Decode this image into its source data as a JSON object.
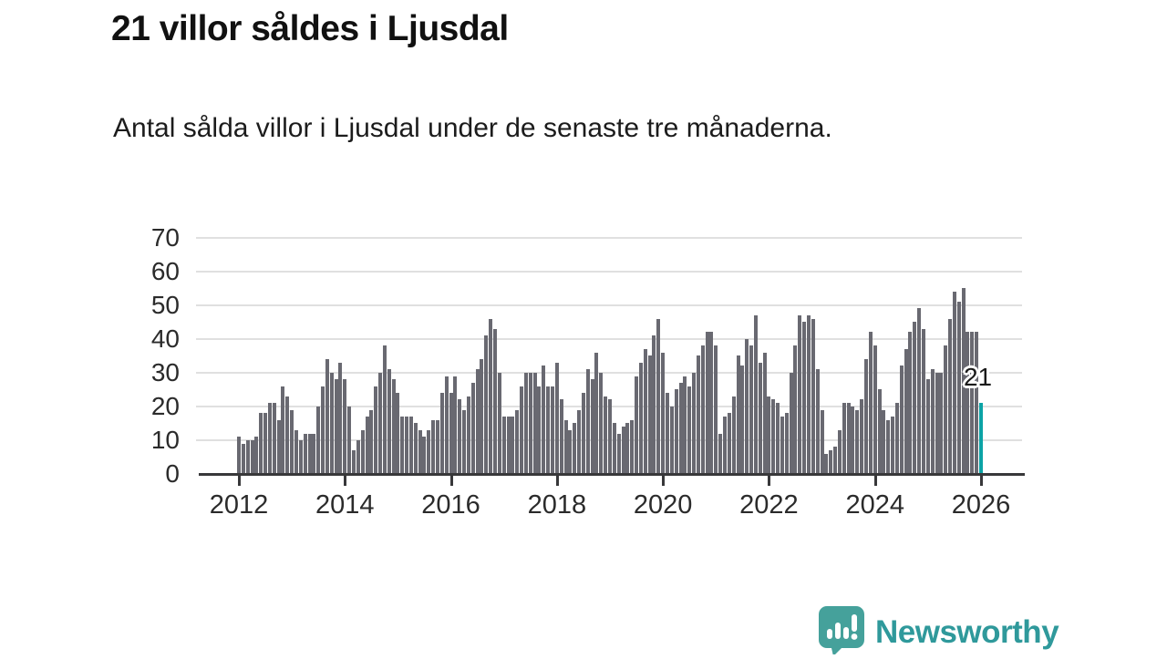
{
  "header": {
    "title": "21 villor såldes i Ljusdal",
    "subtitle": "Antal sålda villor i Ljusdal under de senaste tre månaderna."
  },
  "chart_data": {
    "type": "bar",
    "title": "21 villor såldes i Ljusdal",
    "x_start_year": 2012,
    "points_per_year": 12,
    "x_ticks": [
      2012,
      2014,
      2016,
      2018,
      2020,
      2022,
      2024,
      2026
    ],
    "y_ticks": [
      0,
      10,
      20,
      30,
      40,
      50,
      60,
      70
    ],
    "ylim": [
      0,
      70
    ],
    "grid": true,
    "values": [
      11,
      9,
      10,
      10,
      11,
      18,
      18,
      21,
      21,
      16,
      26,
      23,
      19,
      13,
      10,
      12,
      12,
      12,
      20,
      26,
      34,
      30,
      28,
      33,
      28,
      20,
      7,
      10,
      13,
      17,
      19,
      26,
      30,
      38,
      31,
      28,
      24,
      17,
      17,
      17,
      15,
      13,
      11,
      13,
      16,
      16,
      24,
      29,
      24,
      29,
      22,
      19,
      23,
      27,
      31,
      34,
      41,
      46,
      43,
      30,
      17,
      17,
      17,
      19,
      26,
      30,
      30,
      30,
      26,
      32,
      26,
      26,
      33,
      22,
      16,
      13,
      15,
      19,
      24,
      31,
      28,
      36,
      30,
      23,
      22,
      15,
      12,
      14,
      15,
      16,
      29,
      33,
      37,
      35,
      41,
      46,
      36,
      24,
      20,
      25,
      27,
      29,
      26,
      30,
      35,
      38,
      42,
      42,
      38,
      12,
      17,
      18,
      23,
      35,
      32,
      40,
      38,
      47,
      33,
      36,
      23,
      22,
      21,
      17,
      18,
      30,
      38,
      47,
      45,
      47,
      46,
      31,
      19,
      6,
      7,
      8,
      13,
      21,
      21,
      20,
      19,
      22,
      34,
      42,
      38,
      25,
      19,
      16,
      17,
      21,
      32,
      37,
      42,
      45,
      49,
      43,
      28,
      31,
      30,
      30,
      38,
      46,
      54,
      51,
      55,
      42,
      42,
      42,
      21
    ],
    "highlight_last_value": 21,
    "annotation": {
      "text": "21"
    },
    "colors": {
      "bar": "#696971",
      "highlight": "#0ca3a6",
      "gridline": "#e0e0e0",
      "axis": "#38383a",
      "tick_label": "#2b2b2b"
    }
  },
  "footer": {
    "brand": "Newsworthy",
    "brand_color": "#2f999b"
  }
}
